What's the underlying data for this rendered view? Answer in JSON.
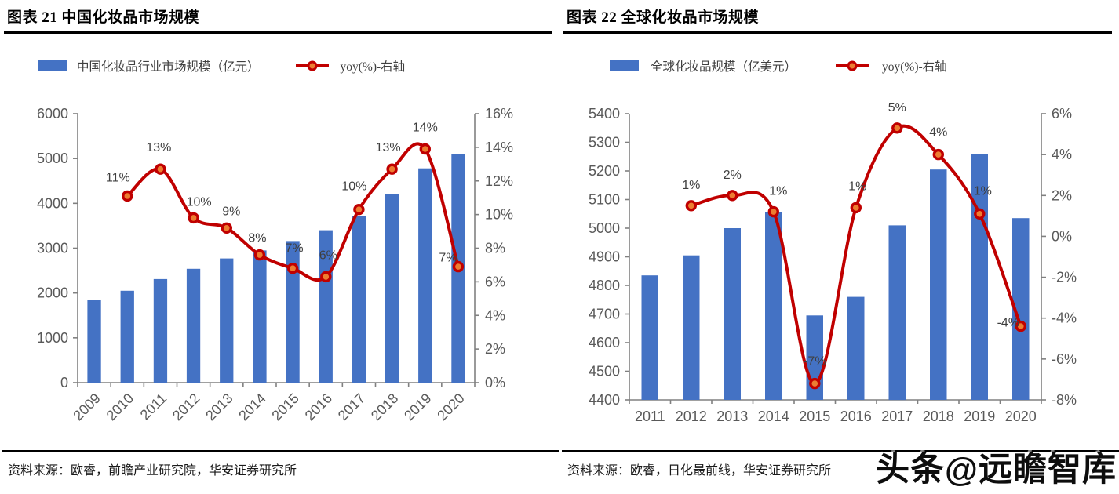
{
  "watermark": {
    "text": "头条@远瞻智库"
  },
  "sources": [
    "资料来源：欧睿，前瞻产业研究院，华安证券研究所",
    "资料来源：欧睿，日化最前线，华安证券研究所"
  ],
  "colors": {
    "bar": "#4472C4",
    "line": "#C00000",
    "marker_fill": "#ED7D31",
    "axis": "#808080",
    "tick_text": "#595959",
    "data_label": "#3f3f3f"
  },
  "chart_data": [
    {
      "type": "combo_bar_line",
      "title": "图表 21 中国化妆品市场规模",
      "categories": [
        "2009",
        "2010",
        "2011",
        "2012",
        "2013",
        "2014",
        "2015",
        "2016",
        "2017",
        "2018",
        "2019",
        "2020"
      ],
      "series": [
        {
          "name": "中国化妆品行业市场规模（亿元）",
          "type": "bar",
          "axis": "left",
          "color": "#4472C4",
          "values": [
            1850,
            2050,
            2310,
            2540,
            2770,
            2950,
            3160,
            3400,
            3720,
            4200,
            4780,
            5100
          ]
        },
        {
          "name": "yoy(%)-右轴",
          "type": "line",
          "axis": "right",
          "color": "#C00000",
          "marker_fill": "#ED7D31",
          "values": [
            null,
            11.1,
            12.7,
            9.8,
            9.2,
            7.6,
            6.8,
            6.3,
            10.3,
            12.7,
            13.9,
            6.9
          ],
          "labels": [
            null,
            "11%",
            "13%",
            "10%",
            "9%",
            "8%",
            "7%",
            "6%",
            "10%",
            "13%",
            "14%",
            "7%"
          ],
          "label_offsets": [
            null,
            [
              -12,
              -24
            ],
            [
              -2,
              -28
            ],
            [
              7,
              -21
            ],
            [
              6,
              -22
            ],
            [
              -3,
              -22
            ],
            [
              2,
              -26
            ],
            [
              3,
              -28
            ],
            [
              -6,
              -30
            ],
            [
              -5,
              -28
            ],
            [
              0,
              -28
            ],
            [
              -13,
              -12
            ]
          ]
        }
      ],
      "left_axis": {
        "min": 0,
        "max": 6000,
        "step": 1000,
        "tick_labels": [
          "0",
          "1000",
          "2000",
          "3000",
          "4000",
          "5000",
          "6000"
        ]
      },
      "right_axis": {
        "min": 0,
        "max": 16,
        "step": 2,
        "tick_labels": [
          "0%",
          "2%",
          "4%",
          "6%",
          "8%",
          "10%",
          "12%",
          "14%",
          "16%"
        ]
      },
      "x_axis": {
        "label_rotation": -45
      },
      "grid": false,
      "legend_position": "top"
    },
    {
      "type": "combo_bar_line",
      "title": "图表 22 全球化妆品市场规模",
      "categories": [
        "2011",
        "2012",
        "2013",
        "2014",
        "2015",
        "2016",
        "2017",
        "2018",
        "2019",
        "2020"
      ],
      "series": [
        {
          "name": "全球化妆品规模（亿美元）",
          "type": "bar",
          "axis": "left",
          "color": "#4472C4",
          "values": [
            4835,
            4905,
            5000,
            5055,
            4695,
            4760,
            5010,
            5205,
            5260,
            5035
          ]
        },
        {
          "name": "yoy(%)-右轴",
          "type": "line",
          "axis": "right",
          "color": "#C00000",
          "marker_fill": "#ED7D31",
          "values": [
            null,
            1.5,
            2.0,
            1.2,
            -7.2,
            1.4,
            5.3,
            4.0,
            1.1,
            -4.4
          ],
          "labels": [
            null,
            "1%",
            "2%",
            "1%",
            "-7%",
            "1%",
            "5%",
            "4%",
            "1%",
            "-4%"
          ],
          "label_offsets": [
            null,
            [
              0,
              -27
            ],
            [
              0,
              -27
            ],
            [
              6,
              -27
            ],
            [
              0,
              -29
            ],
            [
              2,
              -28
            ],
            [
              0,
              -27
            ],
            [
              0,
              -29
            ],
            [
              4,
              -30
            ],
            [
              -16,
              -5
            ]
          ]
        }
      ],
      "left_axis": {
        "min": 4400,
        "max": 5400,
        "step": 100,
        "tick_labels": [
          "4400",
          "4500",
          "4600",
          "4700",
          "4800",
          "4900",
          "5000",
          "5100",
          "5200",
          "5300",
          "5400"
        ]
      },
      "right_axis": {
        "min": -8,
        "max": 6,
        "step": 2,
        "tick_labels": [
          "-8%",
          "-6%",
          "-4%",
          "-2%",
          "0%",
          "2%",
          "4%",
          "6%"
        ]
      },
      "x_axis": {
        "label_rotation": 0
      },
      "grid": false,
      "legend_position": "top"
    }
  ]
}
